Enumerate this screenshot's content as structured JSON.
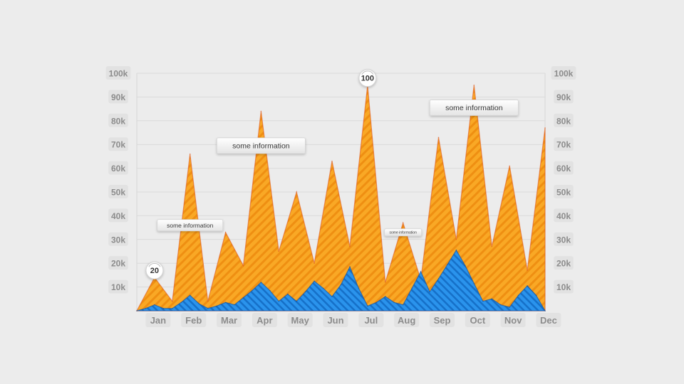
{
  "chart_data": {
    "type": "area",
    "title": "",
    "xlabel": "",
    "ylabel": "",
    "categories": [
      "Jan",
      "Feb",
      "Mar",
      "Apr",
      "May",
      "Jun",
      "Jul",
      "Aug",
      "Sep",
      "Oct",
      "Nov",
      "Dec"
    ],
    "y_ticks": [
      "10k",
      "20k",
      "30k",
      "40k",
      "50k",
      "60k",
      "70k",
      "80k",
      "90k",
      "100k"
    ],
    "ylim": [
      0,
      100000
    ],
    "grid": true,
    "axes": "left-and-right",
    "series": [
      {
        "color": "#f7a31c",
        "pattern": "diagonal-stripes",
        "x": [
          0,
          0.5,
          1,
          1.5,
          2,
          2.5,
          3,
          3.5,
          4,
          4.5,
          5,
          5.5,
          6,
          6.5,
          7,
          7.5,
          8,
          8.5,
          9,
          9.5,
          10,
          10.5,
          11,
          11.5
        ],
        "values": [
          0,
          14000,
          4000,
          66000,
          4000,
          33000,
          19000,
          84000,
          25000,
          50000,
          20000,
          63000,
          27000,
          95000,
          12000,
          37000,
          13000,
          73000,
          30000,
          95000,
          27000,
          61000,
          17000,
          77000
        ]
      },
      {
        "color": "#1f8de6",
        "pattern": "diagonal-stripes",
        "x": [
          0,
          0.25,
          0.5,
          0.75,
          1,
          1.25,
          1.5,
          1.75,
          2,
          2.25,
          2.5,
          2.75,
          3,
          3.25,
          3.5,
          3.75,
          4,
          4.25,
          4.5,
          4.75,
          5,
          5.25,
          5.5,
          5.75,
          6,
          6.25,
          6.5,
          6.75,
          7,
          7.25,
          7.5,
          7.75,
          8,
          8.25,
          8.5,
          8.75,
          9,
          9.25,
          9.5,
          9.75,
          10,
          10.25,
          10.5,
          10.75,
          11,
          11.25,
          11.5
        ],
        "values": [
          0,
          1000,
          2500,
          1000,
          1000,
          3500,
          6500,
          3000,
          1000,
          2000,
          3500,
          2500,
          5500,
          8500,
          12000,
          8500,
          4000,
          7000,
          4000,
          8000,
          12500,
          9500,
          6000,
          11000,
          18500,
          9500,
          2000,
          3500,
          6000,
          3500,
          2500,
          9500,
          16500,
          8000,
          13500,
          19500,
          25500,
          19000,
          11500,
          4000,
          5000,
          2500,
          1500,
          6500,
          10500,
          6500,
          0
        ]
      }
    ],
    "annotations": [
      {
        "type": "bubble",
        "text": "20",
        "x": 0.5,
        "y": 14000
      },
      {
        "type": "bubble",
        "text": "100",
        "x": 6.5,
        "y": 95000
      },
      {
        "type": "label",
        "text": "some information",
        "x": 1.5,
        "y": 36000
      },
      {
        "type": "label",
        "text": "some information",
        "x": 3.5,
        "y": 69500
      },
      {
        "type": "label",
        "text": "some information",
        "x": 7.5,
        "y": 33000
      },
      {
        "type": "label",
        "text": "some information",
        "x": 9.5,
        "y": 85500
      }
    ]
  }
}
